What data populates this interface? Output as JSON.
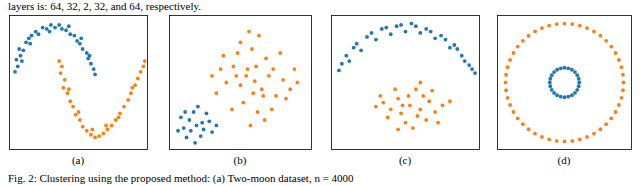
{
  "header_text": "layers is: 64, 32, 2, 32, and 64, respectively.",
  "caption": "Fig. 2: Clustering using the proposed method: (a) Two-moon dataset, n = 4000",
  "chart_data": [
    {
      "type": "scatter",
      "label": "(a)",
      "xlim": [
        0,
        100
      ],
      "ylim": [
        0,
        100
      ],
      "tick_labels": false,
      "series": [
        {
          "color": "#ff7f0e",
          "values": [
            [
              36,
              66
            ],
            [
              38,
              62
            ],
            [
              37,
              57
            ],
            [
              40,
              52
            ],
            [
              39,
              46
            ],
            [
              42,
              42
            ],
            [
              44,
              36
            ],
            [
              46,
              32
            ],
            [
              48,
              26
            ],
            [
              51,
              22
            ],
            [
              53,
              17
            ],
            [
              56,
              14
            ],
            [
              59,
              11
            ],
            [
              62,
              9
            ],
            [
              65,
              10
            ],
            [
              68,
              12
            ],
            [
              71,
              15
            ],
            [
              74,
              18
            ],
            [
              77,
              22
            ],
            [
              80,
              27
            ],
            [
              83,
              32
            ],
            [
              86,
              37
            ],
            [
              88,
              42
            ],
            [
              91,
              48
            ],
            [
              93,
              53
            ],
            [
              95,
              58
            ],
            [
              97,
              62
            ],
            [
              98,
              66
            ],
            [
              43,
              45
            ],
            [
              50,
              28
            ],
            [
              60,
              15
            ],
            [
              70,
              18
            ],
            [
              79,
              24
            ],
            [
              89,
              46
            ]
          ]
        },
        {
          "color": "#1f77b4",
          "values": [
            [
              4,
              58
            ],
            [
              6,
              62
            ],
            [
              5,
              67
            ],
            [
              8,
              70
            ],
            [
              7,
              75
            ],
            [
              10,
              74
            ],
            [
              12,
              80
            ],
            [
              14,
              83
            ],
            [
              16,
              85
            ],
            [
              19,
              88
            ],
            [
              21,
              86
            ],
            [
              24,
              91
            ],
            [
              27,
              90
            ],
            [
              30,
              93
            ],
            [
              33,
              91
            ],
            [
              36,
              93
            ],
            [
              38,
              90
            ],
            [
              41,
              89
            ],
            [
              44,
              86
            ],
            [
              47,
              85
            ],
            [
              49,
              81
            ],
            [
              51,
              79
            ],
            [
              53,
              75
            ],
            [
              56,
              72
            ],
            [
              57,
              68
            ],
            [
              59,
              64
            ],
            [
              61,
              60
            ],
            [
              62,
              56
            ],
            [
              9,
              66
            ],
            [
              15,
              79
            ],
            [
              29,
              88
            ],
            [
              43,
              92
            ],
            [
              52,
              83
            ],
            [
              58,
              70
            ]
          ]
        }
      ]
    },
    {
      "type": "scatter",
      "label": "(b)",
      "xlim": [
        0,
        100
      ],
      "ylim": [
        0,
        100
      ],
      "tick_labels": false,
      "series": [
        {
          "color": "#ff7f0e",
          "values": [
            [
              60,
              51
            ],
            [
              55,
              60
            ],
            [
              65,
              45
            ],
            [
              50,
              48
            ],
            [
              70,
              55
            ],
            [
              45,
              62
            ],
            [
              75,
              40
            ],
            [
              58,
              75
            ],
            [
              62,
              28
            ],
            [
              40,
              50
            ],
            [
              80,
              52
            ],
            [
              52,
              35
            ],
            [
              68,
              68
            ],
            [
              48,
              72
            ],
            [
              72,
              30
            ],
            [
              85,
              45
            ],
            [
              36,
              60
            ],
            [
              63,
              85
            ],
            [
              57,
              18
            ],
            [
              88,
              60
            ],
            [
              33,
              42
            ],
            [
              78,
              72
            ],
            [
              44,
              30
            ],
            [
              66,
              40
            ],
            [
              54,
              55
            ],
            [
              61,
              62
            ],
            [
              73,
              60
            ],
            [
              47,
              55
            ],
            [
              59,
              42
            ],
            [
              82,
              38
            ],
            [
              38,
              70
            ],
            [
              56,
              88
            ],
            [
              67,
              22
            ],
            [
              90,
              50
            ],
            [
              30,
              55
            ],
            [
              50,
              80
            ]
          ]
        },
        {
          "color": "#1f77b4",
          "values": [
            [
              19,
              18
            ],
            [
              14,
              22
            ],
            [
              24,
              15
            ],
            [
              10,
              16
            ],
            [
              28,
              21
            ],
            [
              17,
              28
            ],
            [
              22,
              10
            ],
            [
              12,
              9
            ],
            [
              30,
              13
            ],
            [
              8,
              24
            ],
            [
              20,
              32
            ],
            [
              26,
              27
            ],
            [
              15,
              14
            ],
            [
              23,
              20
            ],
            [
              6,
              14
            ],
            [
              33,
              18
            ],
            [
              18,
              5
            ],
            [
              11,
              28
            ]
          ]
        }
      ]
    },
    {
      "type": "scatter",
      "label": "(c)",
      "xlim": [
        0,
        100
      ],
      "ylim": [
        0,
        100
      ],
      "tick_labels": false,
      "series": [
        {
          "color": "#ff7f0e",
          "values": [
            [
              53,
              33
            ],
            [
              45,
              38
            ],
            [
              60,
              30
            ],
            [
              40,
              30
            ],
            [
              66,
              36
            ],
            [
              50,
              20
            ],
            [
              57,
              45
            ],
            [
              35,
              35
            ],
            [
              70,
              28
            ],
            [
              47,
              27
            ],
            [
              62,
              40
            ],
            [
              43,
              45
            ],
            [
              75,
              33
            ],
            [
              55,
              16
            ],
            [
              30,
              32
            ],
            [
              64,
              22
            ],
            [
              52,
              40
            ],
            [
              38,
              24
            ],
            [
              68,
              44
            ],
            [
              58,
              25
            ],
            [
              48,
              33
            ],
            [
              80,
              36
            ],
            [
              33,
              40
            ],
            [
              60,
              50
            ],
            [
              45,
              15
            ],
            [
              72,
              20
            ]
          ]
        },
        {
          "color": "#1f77b4",
          "values": [
            [
              5,
              59
            ],
            [
              7,
              64
            ],
            [
              10,
              70
            ],
            [
              12,
              66
            ],
            [
              15,
              76
            ],
            [
              17,
              79
            ],
            [
              20,
              74
            ],
            [
              24,
              84
            ],
            [
              27,
              87
            ],
            [
              30,
              82
            ],
            [
              34,
              90
            ],
            [
              37,
              91
            ],
            [
              40,
              86
            ],
            [
              44,
              92
            ],
            [
              47,
              93
            ],
            [
              50,
              88
            ],
            [
              54,
              94
            ],
            [
              57,
              92
            ],
            [
              60,
              87
            ],
            [
              64,
              90
            ],
            [
              67,
              88
            ],
            [
              70,
              83
            ],
            [
              74,
              85
            ],
            [
              77,
              82
            ],
            [
              80,
              76
            ],
            [
              83,
              78
            ],
            [
              85,
              75
            ],
            [
              88,
              70
            ],
            [
              90,
              66
            ],
            [
              93,
              63
            ],
            [
              95,
              60
            ],
            [
              97,
              57
            ]
          ]
        }
      ]
    },
    {
      "type": "scatter",
      "label": "(d)",
      "xlim": [
        0,
        100
      ],
      "ylim": [
        0,
        100
      ],
      "tick_labels": false,
      "series": [
        {
          "color": "#ff7f0e",
          "values": [
            [
              94,
              50
            ],
            [
              92.5,
              61.4
            ],
            [
              88.1,
              72
            ],
            [
              81.1,
              81.1
            ],
            [
              72,
              88.1
            ],
            [
              61.4,
              92.5
            ],
            [
              50,
              94
            ],
            [
              38.6,
              92.5
            ],
            [
              28,
              88.1
            ],
            [
              18.9,
              81.1
            ],
            [
              11.9,
              72
            ],
            [
              7.5,
              61.4
            ],
            [
              6,
              50
            ],
            [
              7.5,
              38.6
            ],
            [
              11.9,
              28
            ],
            [
              18.9,
              18.9
            ],
            [
              28,
              11.9
            ],
            [
              38.6,
              7.5
            ],
            [
              50,
              6
            ],
            [
              61.4,
              7.5
            ],
            [
              72,
              11.9
            ],
            [
              81.1,
              18.9
            ],
            [
              88.1,
              28
            ],
            [
              92.5,
              38.6
            ],
            [
              93.6,
              55.8
            ],
            [
              90.6,
              66.8
            ],
            [
              84.9,
              76.8
            ],
            [
              76.8,
              84.9
            ],
            [
              66.8,
              90.6
            ],
            [
              55.8,
              93.6
            ],
            [
              44.2,
              93.6
            ],
            [
              33.2,
              90.6
            ],
            [
              23.2,
              84.9
            ],
            [
              15.1,
              76.8
            ],
            [
              9.4,
              66.8
            ],
            [
              6.4,
              55.8
            ],
            [
              6.4,
              44.2
            ],
            [
              9.4,
              33.2
            ],
            [
              15.1,
              23.2
            ],
            [
              23.2,
              15.1
            ],
            [
              33.2,
              9.4
            ],
            [
              44.2,
              6.4
            ],
            [
              55.8,
              6.4
            ],
            [
              66.8,
              9.4
            ],
            [
              76.8,
              15.1
            ],
            [
              84.9,
              23.2
            ],
            [
              90.6,
              33.2
            ],
            [
              93.6,
              44.2
            ]
          ]
        },
        {
          "color": "#1f77b4",
          "values": [
            [
              61,
              50
            ],
            [
              59.5,
              55.5
            ],
            [
              55.5,
              59.5
            ],
            [
              50,
              61
            ],
            [
              44.5,
              59.5
            ],
            [
              40.5,
              55.5
            ],
            [
              39,
              50
            ],
            [
              40.5,
              44.5
            ],
            [
              44.5,
              40.5
            ],
            [
              50,
              39
            ],
            [
              55.5,
              40.5
            ],
            [
              59.5,
              44.5
            ],
            [
              60.6,
              52.8
            ],
            [
              57.8,
              57.8
            ],
            [
              52.8,
              60.6
            ],
            [
              47.2,
              60.6
            ],
            [
              42.2,
              57.8
            ],
            [
              39.4,
              52.8
            ],
            [
              39.4,
              47.2
            ],
            [
              42.2,
              42.2
            ],
            [
              47.2,
              39.4
            ],
            [
              52.8,
              39.4
            ],
            [
              57.8,
              42.2
            ],
            [
              60.6,
              47.2
            ]
          ]
        }
      ]
    }
  ]
}
